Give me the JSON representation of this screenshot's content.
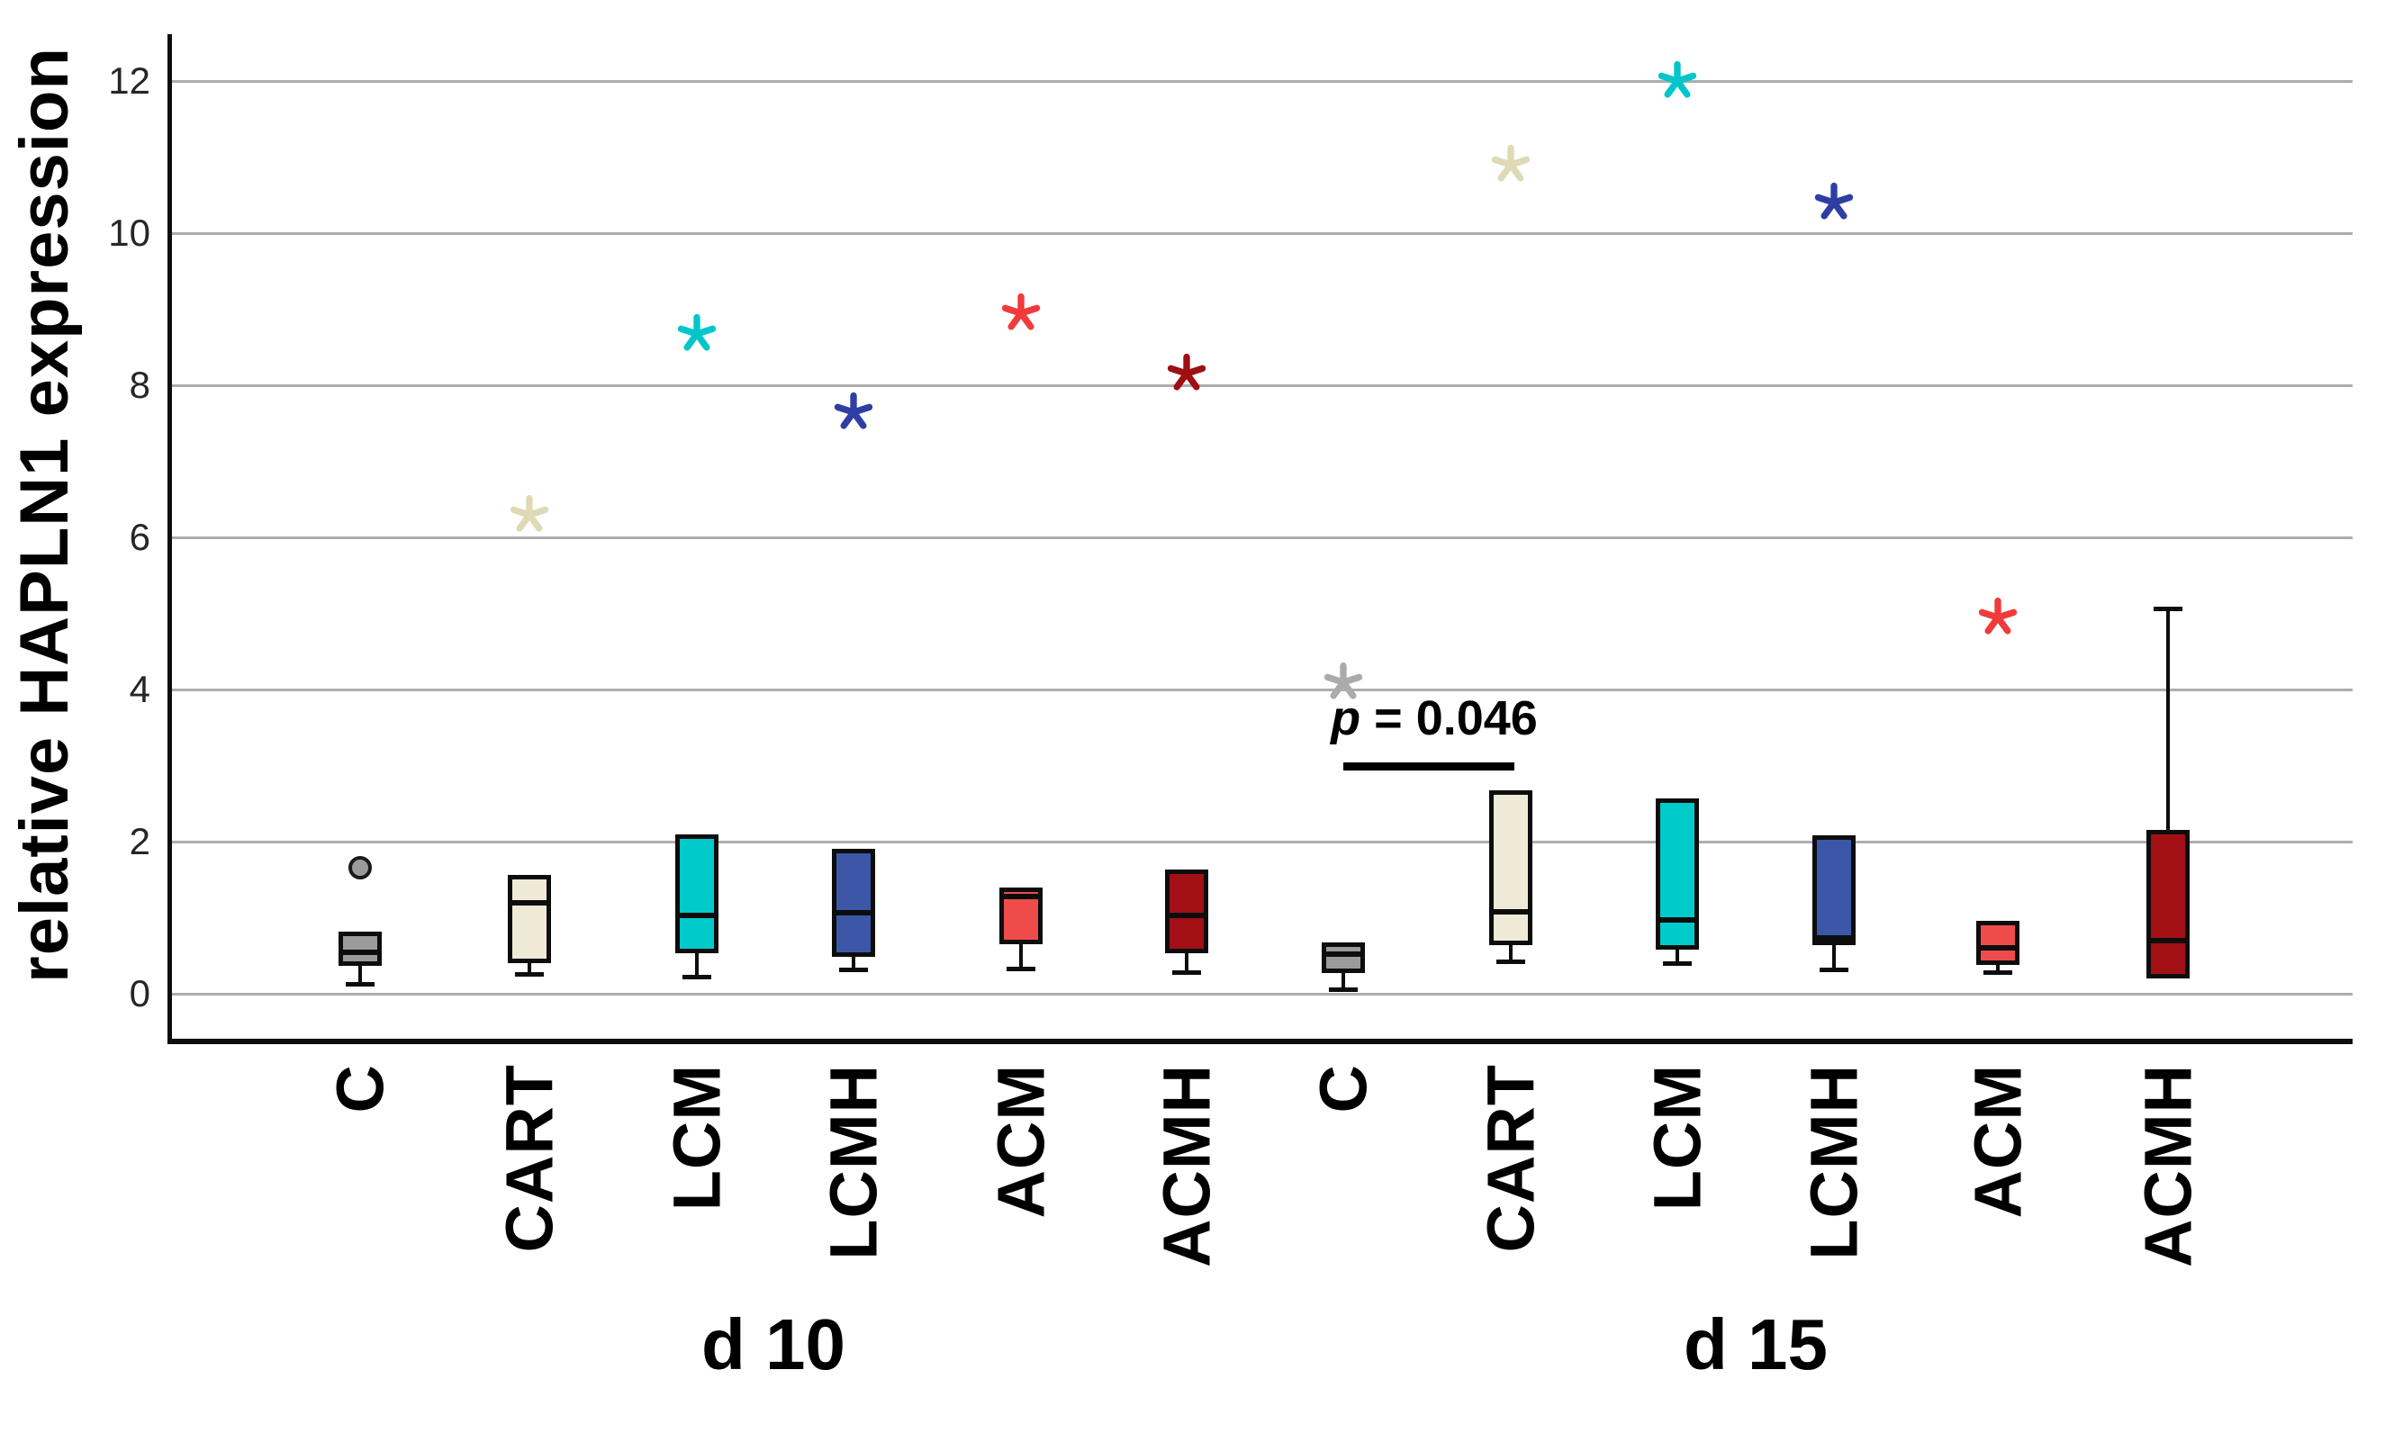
{
  "chart_data": {
    "type": "boxplot",
    "title": "",
    "xlabel": "",
    "ylabel": "relative HAPLN1 expression",
    "ylim": [
      -0.65,
      12.65
    ],
    "yticks": [
      0,
      2,
      4,
      6,
      8,
      10,
      12
    ],
    "grid": "horizontal",
    "grid_color": "#adadad",
    "facets": [
      {
        "label": "d 10"
      },
      {
        "label": "d 15"
      }
    ],
    "groups": [
      {
        "id": "C-d10",
        "label": "C",
        "facet": 0,
        "color": "#9B9B9B",
        "star_color": "#ABABAB",
        "q1": 0.37,
        "median": 0.54,
        "q3": 0.82,
        "whisker_low": 0.13,
        "whisker_high": null,
        "outlier_circles": [
          1.66
        ],
        "outlier_stars": []
      },
      {
        "id": "CART-d10",
        "label": "CART",
        "facet": 0,
        "color": "#EEEAD6",
        "star_color": "#DFD9B5",
        "q1": 0.4,
        "median": 1.19,
        "q3": 1.56,
        "whisker_low": 0.26,
        "whisker_high": null,
        "outlier_circles": [],
        "outlier_stars": [
          6.3
        ]
      },
      {
        "id": "LCM-d10",
        "label": "LCM",
        "facet": 0,
        "color": "#00CACA",
        "star_color": "#00C6CC",
        "q1": 0.53,
        "median": 1.03,
        "q3": 2.1,
        "whisker_low": 0.22,
        "whisker_high": null,
        "outlier_circles": [],
        "outlier_stars": [
          8.67
        ]
      },
      {
        "id": "LCMH-d10",
        "label": "LCMH",
        "facet": 0,
        "color": "#3C57A8",
        "star_color": "#2E3EA3",
        "q1": 0.48,
        "median": 1.07,
        "q3": 1.9,
        "whisker_low": 0.32,
        "whisker_high": null,
        "outlier_circles": [],
        "outlier_stars": [
          7.65
        ]
      },
      {
        "id": "ACM-d10",
        "label": "ACM",
        "facet": 0,
        "color": "#EF4B4B",
        "star_color": "#EF3B3B",
        "q1": 0.65,
        "median": 1.28,
        "q3": 1.4,
        "whisker_low": 0.33,
        "whisker_high": null,
        "outlier_circles": [],
        "outlier_stars": [
          8.95
        ]
      },
      {
        "id": "ACMH-d10",
        "label": "ACMH",
        "facet": 0,
        "color": "#A21016",
        "star_color": "#9E0F14",
        "q1": 0.53,
        "median": 1.03,
        "q3": 1.63,
        "whisker_low": 0.28,
        "whisker_high": null,
        "outlier_circles": [],
        "outlier_stars": [
          8.15
        ]
      },
      {
        "id": "C-d15",
        "label": "C",
        "facet": 1,
        "color": "#9B9B9B",
        "star_color": "#ABABAB",
        "q1": 0.27,
        "median": 0.52,
        "q3": 0.67,
        "whisker_low": 0.06,
        "whisker_high": null,
        "outlier_circles": [],
        "outlier_stars": [
          4.1
        ]
      },
      {
        "id": "CART-d15",
        "label": "CART",
        "facet": 1,
        "color": "#EEEAD6",
        "star_color": "#DFD9B5",
        "q1": 0.64,
        "median": 1.08,
        "q3": 2.67,
        "whisker_low": 0.43,
        "whisker_high": null,
        "outlier_circles": [],
        "outlier_stars": [
          10.9
        ]
      },
      {
        "id": "LCM-d15",
        "label": "LCM",
        "facet": 1,
        "color": "#00CACA",
        "star_color": "#00C6CC",
        "q1": 0.58,
        "median": 0.97,
        "q3": 2.57,
        "whisker_low": 0.4,
        "whisker_high": null,
        "outlier_circles": [],
        "outlier_stars": [
          12.0
        ]
      },
      {
        "id": "LCMH-d15",
        "label": "LCMH",
        "facet": 1,
        "color": "#3C57A8",
        "star_color": "#2E3EA3",
        "q1": 0.64,
        "median": 0.73,
        "q3": 2.08,
        "whisker_low": 0.32,
        "whisker_high": null,
        "outlier_circles": [],
        "outlier_stars": [
          10.4
        ]
      },
      {
        "id": "ACM-d15",
        "label": "ACM",
        "facet": 1,
        "color": "#EF4B4B",
        "star_color": "#EF3B3B",
        "q1": 0.38,
        "median": 0.6,
        "q3": 0.96,
        "whisker_low": 0.28,
        "whisker_high": null,
        "outlier_circles": [],
        "outlier_stars": [
          4.95
        ]
      },
      {
        "id": "ACMH-d15",
        "label": "ACMH",
        "facet": 1,
        "color": "#A21016",
        "star_color": "#9E0F14",
        "q1": 0.2,
        "median": 0.7,
        "q3": 2.15,
        "whisker_low": null,
        "whisker_high": 5.07,
        "outlier_circles": [],
        "outlier_stars": []
      }
    ],
    "annotation": {
      "text": "p = 0.046",
      "p_italic": "p",
      "p_rest": " = 0.046",
      "between_groups": [
        "C-d15",
        "CART-d15"
      ],
      "bar_y": 3.0
    }
  }
}
